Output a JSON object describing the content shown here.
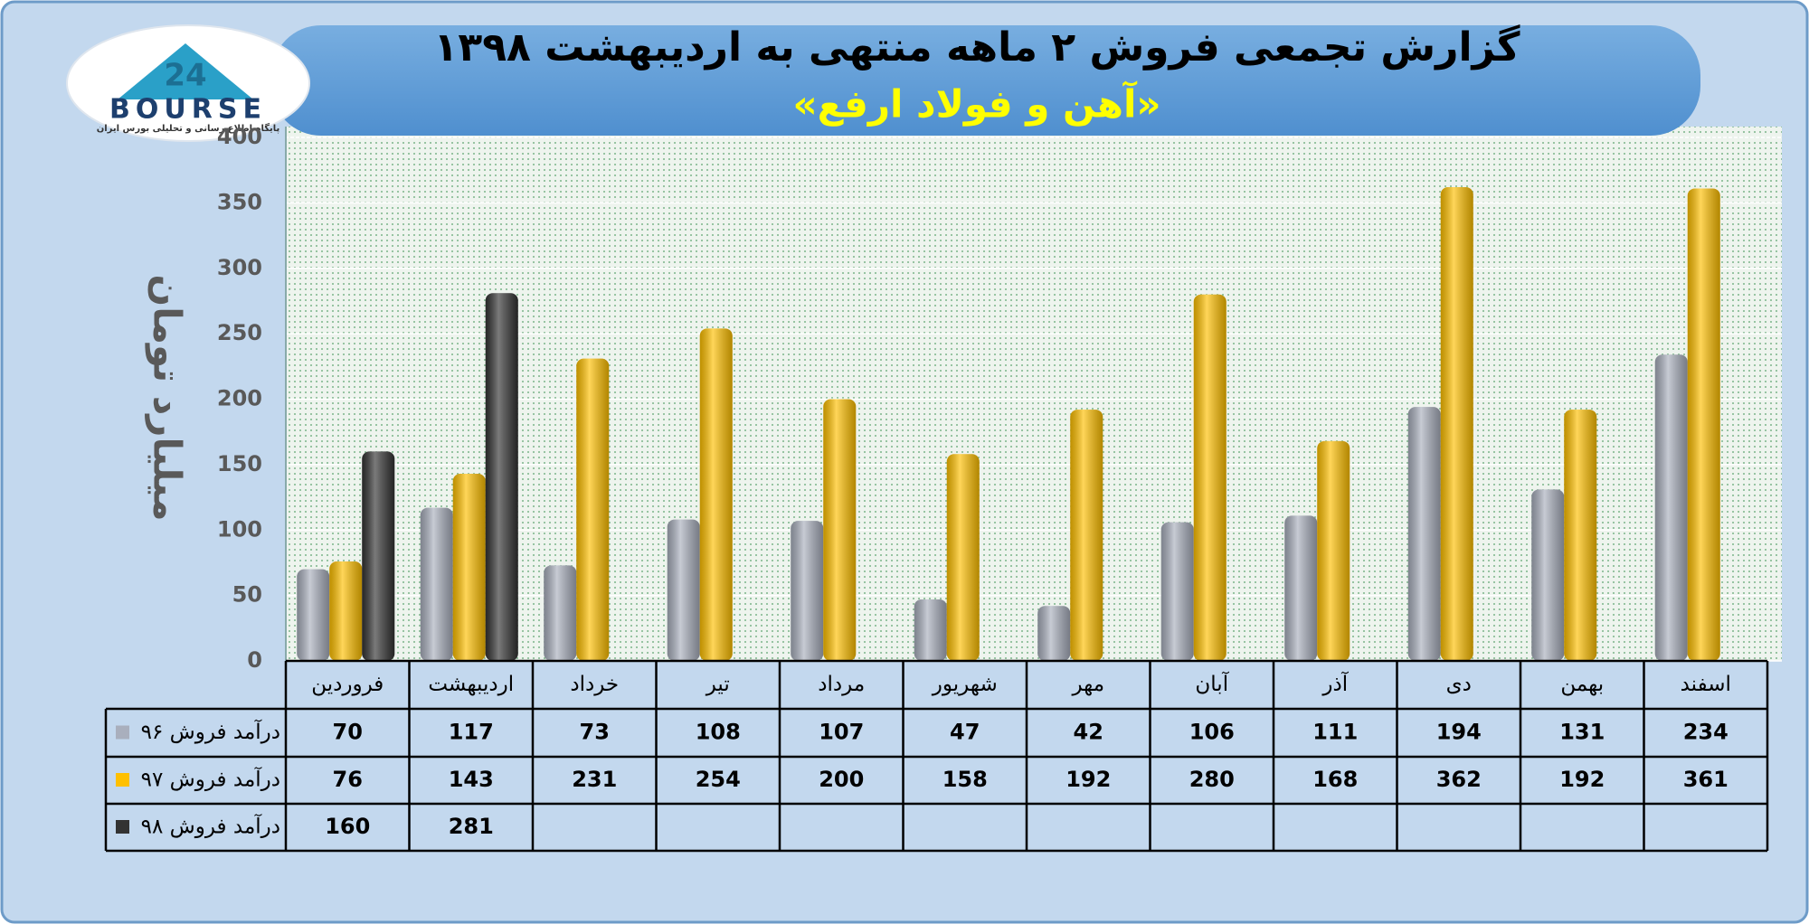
{
  "logo": {
    "mark": "24",
    "name": "BOURSE",
    "tagline": "پایگاه اطلاع رسانی و تحلیلی بورس ایران"
  },
  "chart_data": {
    "type": "bar",
    "title": "گزارش تجمعی فروش ۲ ماهه منتهی به اردیبهشت ۱۳۹۸",
    "subtitle": "«آهن و فولاد ارفع»",
    "y_label": "میلیارد تومان",
    "categories": [
      "فروردین",
      "اردیبهشت",
      "خرداد",
      "تیر",
      "مرداد",
      "شهریور",
      "مهر",
      "آبان",
      "آذر",
      "دی",
      "بهمن",
      "اسفند"
    ],
    "series": [
      {
        "name": "درآمد فروش ۹۶",
        "color": "#a9afbd",
        "values": [
          70,
          117,
          73,
          108,
          107,
          47,
          42,
          106,
          111,
          194,
          131,
          234
        ]
      },
      {
        "name": "درآمد فروش ۹۷",
        "color": "#ffc000",
        "values": [
          76,
          143,
          231,
          254,
          200,
          158,
          192,
          280,
          168,
          362,
          192,
          361
        ]
      },
      {
        "name": "درآمد فروش ۹۸",
        "color": "#333333",
        "values": [
          160,
          281,
          null,
          null,
          null,
          null,
          null,
          null,
          null,
          null,
          null,
          null
        ]
      }
    ],
    "ylim": [
      0,
      400
    ],
    "yticks": [
      0,
      50,
      100,
      150,
      200,
      250,
      300,
      350,
      400
    ],
    "grid": true
  }
}
